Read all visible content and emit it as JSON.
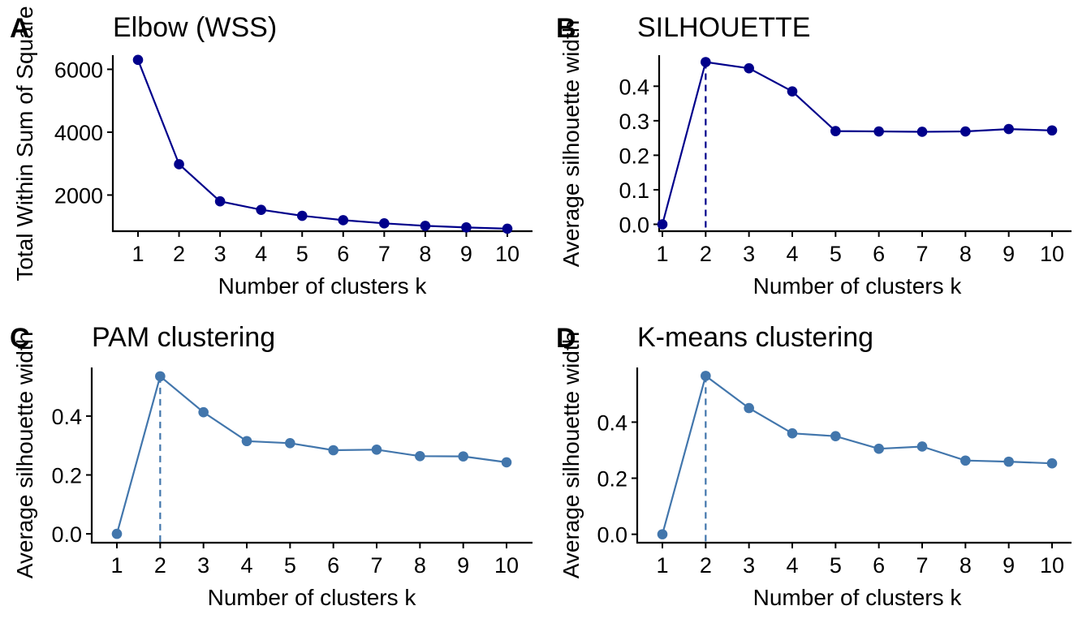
{
  "chart_data": [
    {
      "panel_tag": "A",
      "type": "line",
      "title": "Elbow (WSS)",
      "xlabel": "Number of clusters k",
      "ylabel": "Total Within Sum of Square",
      "x": [
        1,
        2,
        3,
        4,
        5,
        6,
        7,
        8,
        9,
        10
      ],
      "y": [
        6300,
        2980,
        1800,
        1530,
        1340,
        1200,
        1100,
        1020,
        970,
        930
      ],
      "xticks": [
        1,
        2,
        3,
        4,
        5,
        6,
        7,
        8,
        9,
        10
      ],
      "yticks": [
        2000,
        4000,
        6000
      ],
      "ylim": [
        850,
        6450
      ],
      "optimal_k": null,
      "color": "#00008B",
      "grid": false
    },
    {
      "panel_tag": "B",
      "type": "line",
      "title": "SILHOUETTE",
      "xlabel": "Number of clusters k",
      "ylabel": "Average silhouette width",
      "x": [
        1,
        2,
        3,
        4,
        5,
        6,
        7,
        8,
        9,
        10
      ],
      "y": [
        0.0,
        0.47,
        0.452,
        0.385,
        0.27,
        0.269,
        0.268,
        0.269,
        0.276,
        0.272
      ],
      "xticks": [
        1,
        2,
        3,
        4,
        5,
        6,
        7,
        8,
        9,
        10
      ],
      "yticks": [
        0.0,
        0.1,
        0.2,
        0.3,
        0.4
      ],
      "yticklabels": [
        "0.0",
        "0.1",
        "0.2",
        "0.3",
        "0.4"
      ],
      "ylim": [
        -0.02,
        0.49
      ],
      "optimal_k": 2,
      "color": "#00008B",
      "grid": false
    },
    {
      "panel_tag": "C",
      "type": "line",
      "title": "PAM clustering",
      "xlabel": "Number of clusters k",
      "ylabel": "Average silhouette width",
      "x": [
        1,
        2,
        3,
        4,
        5,
        6,
        7,
        8,
        9,
        10
      ],
      "y": [
        0.0,
        0.535,
        0.413,
        0.315,
        0.308,
        0.284,
        0.286,
        0.264,
        0.263,
        0.243
      ],
      "xticks": [
        1,
        2,
        3,
        4,
        5,
        6,
        7,
        8,
        9,
        10
      ],
      "yticks": [
        0.0,
        0.2,
        0.4
      ],
      "yticklabels": [
        "0.0",
        "0.2",
        "0.4"
      ],
      "ylim": [
        -0.03,
        0.565
      ],
      "optimal_k": 2,
      "color": "#4276AC",
      "grid": false
    },
    {
      "panel_tag": "D",
      "type": "line",
      "title": "K-means clustering",
      "xlabel": "Number of clusters k",
      "ylabel": "Average silhouette width",
      "x": [
        1,
        2,
        3,
        4,
        5,
        6,
        7,
        8,
        9,
        10
      ],
      "y": [
        0.0,
        0.565,
        0.45,
        0.36,
        0.35,
        0.305,
        0.313,
        0.263,
        0.259,
        0.253
      ],
      "xticks": [
        1,
        2,
        3,
        4,
        5,
        6,
        7,
        8,
        9,
        10
      ],
      "yticks": [
        0.0,
        0.2,
        0.4
      ],
      "yticklabels": [
        "0.0",
        "0.2",
        "0.4"
      ],
      "ylim": [
        -0.03,
        0.595
      ],
      "optimal_k": 2,
      "color": "#4276AC",
      "grid": false
    }
  ]
}
